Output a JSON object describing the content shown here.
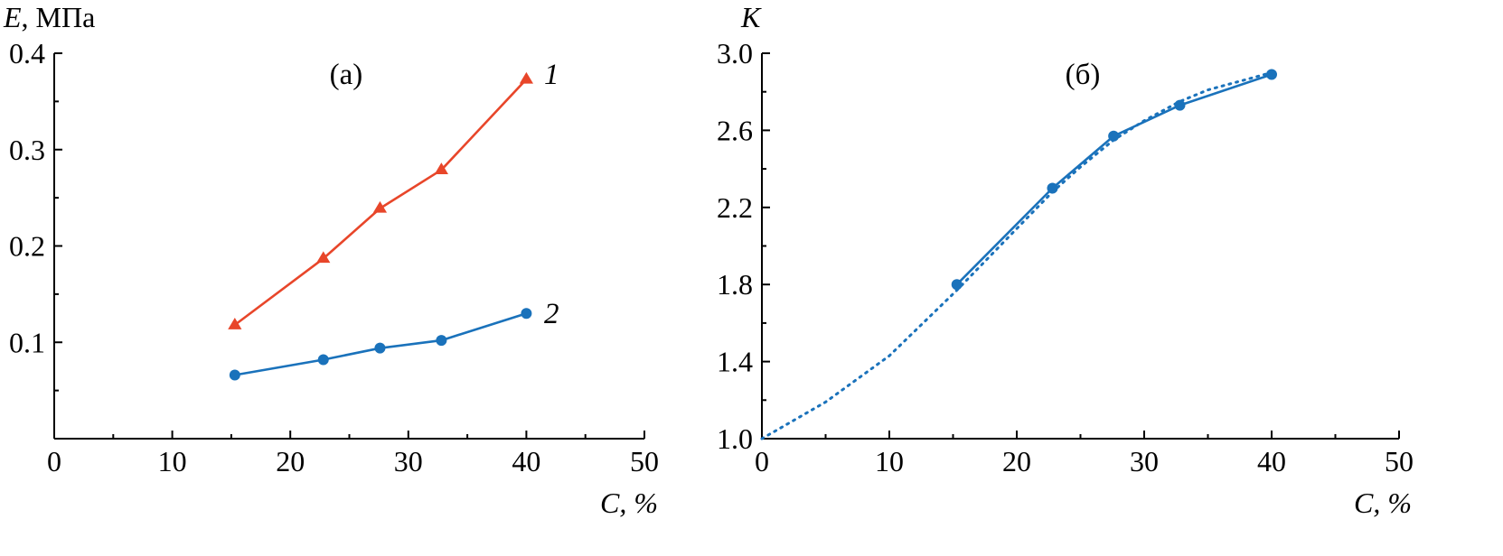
{
  "chart_data": [
    {
      "type": "line",
      "panel_label": "(а)",
      "ylabel_symbol": "E",
      "ylabel_unit": ", МПа",
      "xlabel_symbol": "C",
      "xlabel_unit": ", %",
      "xlim": [
        0,
        50
      ],
      "ylim": [
        0,
        0.4
      ],
      "x_ticks": [
        0,
        10,
        20,
        30,
        40,
        50
      ],
      "x_tick_labels": [
        "0",
        "10",
        "20",
        "30",
        "40",
        "50"
      ],
      "y_ticks": [
        0.1,
        0.2,
        0.3,
        0.4
      ],
      "y_tick_labels": [
        "0.1",
        "0.2",
        "0.3",
        "0.4"
      ],
      "grid": false,
      "series": [
        {
          "name": "1",
          "color": "#e8462a",
          "marker": "triangle",
          "x": [
            15.3,
            22.8,
            27.6,
            32.8,
            40
          ],
          "y": [
            0.118,
            0.187,
            0.239,
            0.279,
            0.373
          ]
        },
        {
          "name": "2",
          "color": "#1a72bb",
          "marker": "circle",
          "x": [
            15.3,
            22.8,
            27.6,
            32.8,
            40
          ],
          "y": [
            0.066,
            0.082,
            0.094,
            0.102,
            0.13
          ]
        }
      ]
    },
    {
      "type": "line",
      "panel_label": "(б)",
      "ylabel_symbol": "K",
      "xlabel_symbol": "C",
      "xlabel_unit": ", %",
      "xlim": [
        0,
        50
      ],
      "ylim": [
        1.0,
        3.0
      ],
      "x_ticks": [
        0,
        10,
        20,
        30,
        40,
        50
      ],
      "x_tick_labels": [
        "0",
        "10",
        "20",
        "30",
        "40",
        "50"
      ],
      "y_ticks": [
        1.0,
        1.4,
        1.8,
        2.2,
        2.6,
        3.0
      ],
      "y_tick_labels": [
        "1.0",
        "1.4",
        "1.8",
        "2.2",
        "2.6",
        "3.0"
      ],
      "grid": false,
      "series": [
        {
          "color": "#1a72bb",
          "marker": "circle",
          "style": "solid",
          "x": [
            15.3,
            22.8,
            27.6,
            32.8,
            40
          ],
          "y": [
            1.8,
            2.3,
            2.57,
            2.73,
            2.89
          ]
        },
        {
          "color": "#1a72bb",
          "style": "dotted",
          "x": [
            0,
            5,
            10,
            15.3,
            20,
            22.8,
            25,
            27.6,
            30,
            32.8,
            35,
            40
          ],
          "y": [
            1.0,
            1.19,
            1.43,
            1.77,
            2.09,
            2.28,
            2.41,
            2.55,
            2.65,
            2.75,
            2.81,
            2.9
          ]
        }
      ]
    }
  ]
}
